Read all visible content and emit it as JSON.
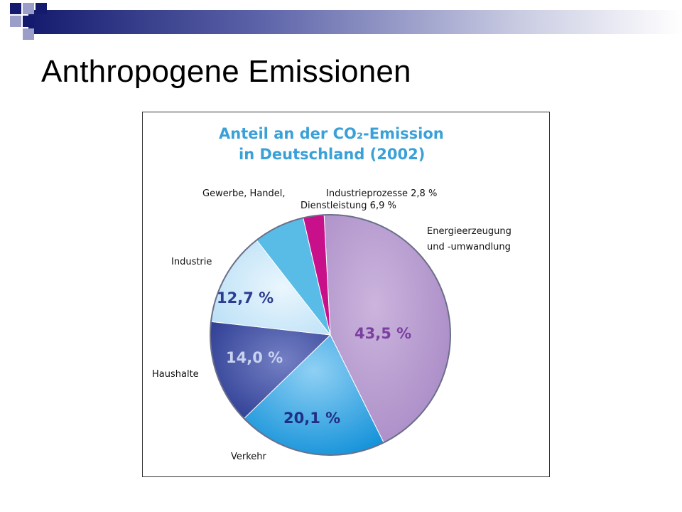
{
  "slide": {
    "title": "Anthropogene Emissionen"
  },
  "colors": {
    "header_dark": "#141b6e",
    "header_light": "#c9cbe2",
    "square_dark": "#141b6e",
    "square_light": "#9a9ec8"
  },
  "chart_data": {
    "type": "pie",
    "title": "Anteil an der CO₂-Emission",
    "subtitle": "in Deutschland (2002)",
    "slices": [
      {
        "label_lines": [
          "Energieerzeugung",
          "und -umwandlung"
        ],
        "value": 43.5,
        "value_label": "43,5 %",
        "color": "#b99ad0"
      },
      {
        "label_lines": [
          "Verkehr"
        ],
        "value": 20.1,
        "value_label": "20,1 %",
        "color": "#5cb5ea"
      },
      {
        "label_lines": [
          "Haushalte"
        ],
        "value": 14.0,
        "value_label": "14,0 %",
        "color": "#3b4fa6"
      },
      {
        "label_lines": [
          "Industrie"
        ],
        "value": 12.7,
        "value_label": "12,7 %",
        "color": "#c4e5f8"
      },
      {
        "label_lines": [
          "Gewerbe, Handel,",
          "Dienstleistung 6,9 %"
        ],
        "value": 6.9,
        "value_label": "",
        "color": "#59bce6"
      },
      {
        "label_lines": [
          "Industrieprozesse 2,8 %"
        ],
        "value": 2.8,
        "value_label": "",
        "color": "#c8108a"
      }
    ]
  }
}
